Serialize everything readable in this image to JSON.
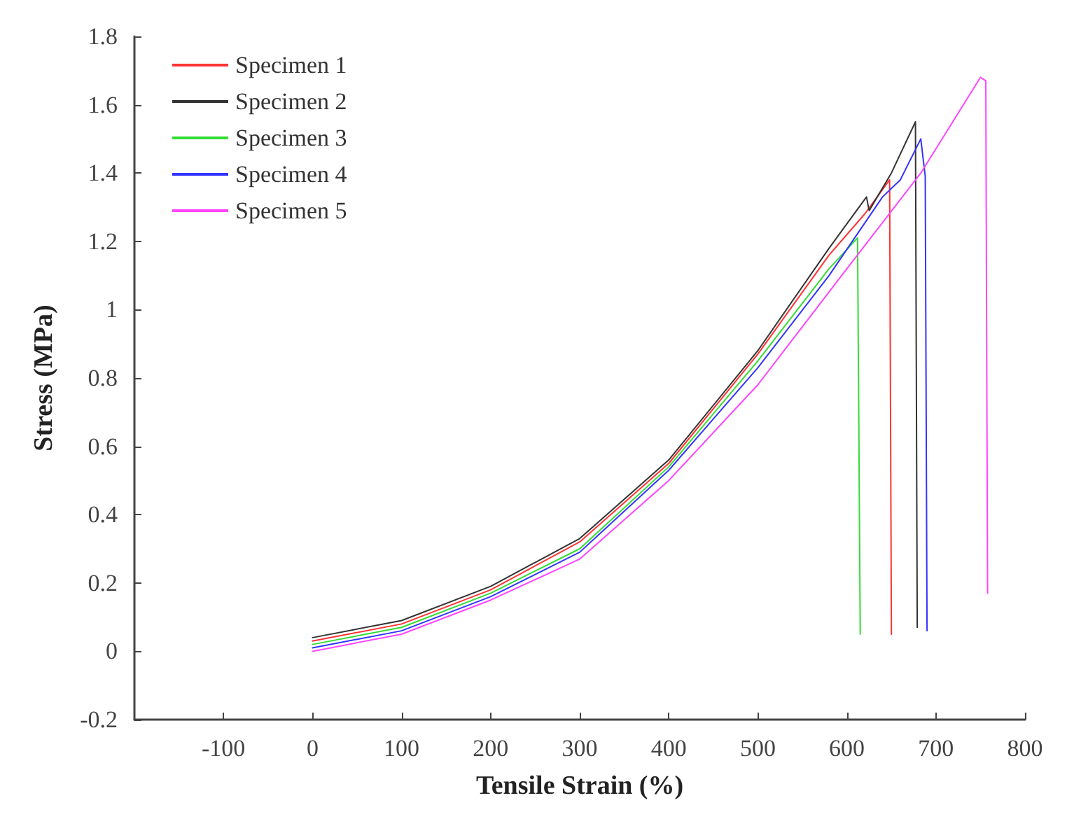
{
  "chart_data": {
    "type": "line",
    "xlabel": "Tensile Strain (%)",
    "ylabel": "Stress (MPa)",
    "xlim": [
      -200,
      800
    ],
    "xticks": [
      -100,
      0,
      100,
      200,
      300,
      400,
      500,
      600,
      700,
      800
    ],
    "ylim": [
      -0.2,
      1.8
    ],
    "yticks": [
      -0.2,
      0,
      0.2,
      0.4,
      0.6,
      0.8,
      1,
      1.2,
      1.4,
      1.6,
      1.8
    ],
    "grid": false,
    "legend": "top left",
    "marker": "none",
    "line_style": "solid",
    "series": [
      {
        "name": "Specimen 1",
        "color": "#ff3333",
        "x": [
          0,
          100,
          200,
          300,
          400,
          500,
          580,
          620,
          648,
          650
        ],
        "values": [
          0.03,
          0.08,
          0.18,
          0.32,
          0.55,
          0.87,
          1.16,
          1.28,
          1.38,
          0.05
        ]
      },
      {
        "name": "Specimen 2",
        "color": "#333333",
        "x": [
          0,
          100,
          200,
          300,
          400,
          500,
          580,
          622,
          625,
          650,
          677,
          679
        ],
        "values": [
          0.04,
          0.09,
          0.19,
          0.33,
          0.56,
          0.88,
          1.18,
          1.33,
          1.29,
          1.4,
          1.55,
          0.07
        ]
      },
      {
        "name": "Specimen 3",
        "color": "#33dd33",
        "x": [
          0,
          100,
          200,
          300,
          400,
          500,
          580,
          612,
          615
        ],
        "values": [
          0.02,
          0.07,
          0.17,
          0.3,
          0.54,
          0.85,
          1.12,
          1.21,
          0.05
        ]
      },
      {
        "name": "Specimen 4",
        "color": "#3333ff",
        "x": [
          0,
          100,
          200,
          300,
          400,
          500,
          580,
          640,
          660,
          683,
          688,
          690
        ],
        "values": [
          0.01,
          0.06,
          0.16,
          0.29,
          0.53,
          0.83,
          1.1,
          1.33,
          1.38,
          1.5,
          1.39,
          0.06
        ]
      },
      {
        "name": "Specimen 5",
        "color": "#ff44ff",
        "x": [
          0,
          100,
          200,
          300,
          400,
          500,
          600,
          683,
          750,
          756,
          757,
          758
        ],
        "values": [
          0,
          0.05,
          0.15,
          0.27,
          0.5,
          0.78,
          1.12,
          1.4,
          1.68,
          1.67,
          0.88,
          0.17
        ]
      }
    ]
  }
}
